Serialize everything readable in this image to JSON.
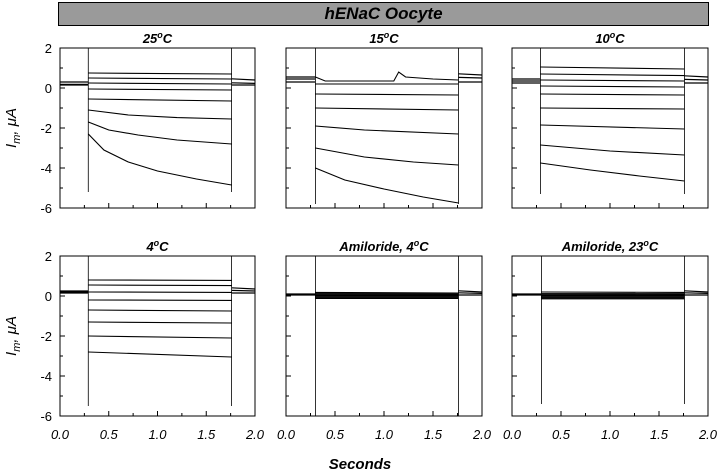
{
  "banner_title": "hENaC Oocyte",
  "xlabel": "Seconds",
  "ylabel_main": "I",
  "ylabel_sub": "m",
  "ylabel_rest": ", μA",
  "chart_data": [
    {
      "type": "line",
      "title_main": "25",
      "title_sup": "o",
      "title_rest": "C",
      "xlim": [
        0,
        2
      ],
      "ylim": [
        -6,
        2
      ],
      "xticks": [
        "0.0",
        "0.5",
        "1.0",
        "1.5",
        "2.0"
      ],
      "yticks": [
        "2",
        "0",
        "-2",
        "-4",
        "-6"
      ],
      "pulse": [
        0.29,
        1.76
      ],
      "transient_low": -5.2,
      "baseline": [
        0.15,
        0.18,
        0.3
      ],
      "series": [
        {
          "values": [
            [
              0.29,
              0.75
            ],
            [
              1.76,
              0.7
            ]
          ]
        },
        {
          "values": [
            [
              0.29,
              0.5
            ],
            [
              1.76,
              0.45
            ]
          ]
        },
        {
          "values": [
            [
              0.29,
              0.25
            ],
            [
              1.76,
              0.2
            ]
          ]
        },
        {
          "values": [
            [
              0.29,
              -0.05
            ],
            [
              1.76,
              -0.1
            ]
          ]
        },
        {
          "values": [
            [
              0.29,
              -0.55
            ],
            [
              1.76,
              -0.65
            ]
          ]
        },
        {
          "values": [
            [
              0.29,
              -1.1
            ],
            [
              0.7,
              -1.35
            ],
            [
              1.2,
              -1.48
            ],
            [
              1.76,
              -1.55
            ]
          ]
        },
        {
          "values": [
            [
              0.29,
              -1.7
            ],
            [
              0.5,
              -2.1
            ],
            [
              0.8,
              -2.35
            ],
            [
              1.2,
              -2.6
            ],
            [
              1.76,
              -2.8
            ]
          ]
        },
        {
          "values": [
            [
              0.29,
              -2.3
            ],
            [
              0.45,
              -3.1
            ],
            [
              0.7,
              -3.7
            ],
            [
              1.0,
              -4.15
            ],
            [
              1.4,
              -4.55
            ],
            [
              1.76,
              -4.85
            ]
          ]
        }
      ]
    },
    {
      "type": "line",
      "title_main": "15",
      "title_sup": "o",
      "title_rest": "C",
      "xlim": [
        0,
        2
      ],
      "ylim": [
        -6,
        2
      ],
      "xticks": [
        "0.0",
        "0.5",
        "1.0",
        "1.5",
        "2.0"
      ],
      "yticks": [],
      "pulse": [
        0.3,
        1.76
      ],
      "transient_low": -5.8,
      "baseline": [
        0.3,
        0.45,
        0.55
      ],
      "series": [
        {
          "values": [
            [
              0.3,
              0.55
            ],
            [
              0.4,
              0.35
            ],
            [
              0.6,
              0.35
            ],
            [
              1.1,
              0.35
            ],
            [
              1.15,
              0.8
            ],
            [
              1.22,
              0.55
            ],
            [
              1.5,
              0.45
            ],
            [
              1.76,
              0.4
            ]
          ]
        },
        {
          "values": [
            [
              0.3,
              0.2
            ],
            [
              1.76,
              0.2
            ]
          ]
        },
        {
          "values": [
            [
              0.3,
              -0.3
            ],
            [
              1.76,
              -0.35
            ]
          ]
        },
        {
          "values": [
            [
              0.3,
              -1.0
            ],
            [
              1.76,
              -1.1
            ]
          ]
        },
        {
          "values": [
            [
              0.3,
              -1.9
            ],
            [
              0.8,
              -2.1
            ],
            [
              1.76,
              -2.3
            ]
          ]
        },
        {
          "values": [
            [
              0.3,
              -3.0
            ],
            [
              0.8,
              -3.45
            ],
            [
              1.3,
              -3.7
            ],
            [
              1.76,
              -3.85
            ]
          ]
        },
        {
          "values": [
            [
              0.3,
              -4.0
            ],
            [
              0.6,
              -4.6
            ],
            [
              1.0,
              -5.05
            ],
            [
              1.4,
              -5.45
            ],
            [
              1.76,
              -5.75
            ]
          ]
        }
      ]
    },
    {
      "type": "line",
      "title_main": "10",
      "title_sup": "o",
      "title_rest": "C",
      "xlim": [
        0,
        2
      ],
      "ylim": [
        -6,
        2
      ],
      "xticks": [
        "0.0",
        "0.5",
        "1.0",
        "1.5",
        "2.0"
      ],
      "yticks": [],
      "pulse": [
        0.29,
        1.76
      ],
      "transient_low": -5.3,
      "baseline": [
        0.25,
        0.35,
        0.45
      ],
      "series": [
        {
          "values": [
            [
              0.29,
              1.05
            ],
            [
              1.76,
              0.95
            ]
          ]
        },
        {
          "values": [
            [
              0.29,
              0.7
            ],
            [
              1.76,
              0.62
            ]
          ]
        },
        {
          "values": [
            [
              0.29,
              0.4
            ],
            [
              1.76,
              0.35
            ]
          ]
        },
        {
          "values": [
            [
              0.29,
              0.1
            ],
            [
              1.76,
              0.05
            ]
          ]
        },
        {
          "values": [
            [
              0.29,
              -0.3
            ],
            [
              1.76,
              -0.35
            ]
          ]
        },
        {
          "values": [
            [
              0.29,
              -1.0
            ],
            [
              1.76,
              -1.05
            ]
          ]
        },
        {
          "values": [
            [
              0.29,
              -1.85
            ],
            [
              1.76,
              -2.05
            ]
          ]
        },
        {
          "values": [
            [
              0.29,
              -2.85
            ],
            [
              1.0,
              -3.15
            ],
            [
              1.76,
              -3.35
            ]
          ]
        },
        {
          "values": [
            [
              0.29,
              -3.75
            ],
            [
              0.8,
              -4.1
            ],
            [
              1.3,
              -4.4
            ],
            [
              1.76,
              -4.65
            ]
          ]
        }
      ]
    },
    {
      "type": "line",
      "title_main": "4",
      "title_sup": "o",
      "title_rest": "C",
      "xlim": [
        0,
        2
      ],
      "ylim": [
        -6,
        2
      ],
      "xticks": [
        "0.0",
        "0.5",
        "1.0",
        "1.5",
        "2.0"
      ],
      "yticks": [
        "2",
        "0",
        "-2",
        "-4",
        "-6"
      ],
      "pulse": [
        0.29,
        1.76
      ],
      "transient_low": -5.5,
      "baseline": [
        0.15,
        0.2,
        0.25
      ],
      "series": [
        {
          "values": [
            [
              0.29,
              0.8
            ],
            [
              1.76,
              0.78
            ]
          ]
        },
        {
          "values": [
            [
              0.29,
              0.55
            ],
            [
              1.76,
              0.52
            ]
          ]
        },
        {
          "values": [
            [
              0.29,
              0.2
            ],
            [
              1.76,
              0.18
            ]
          ]
        },
        {
          "values": [
            [
              0.29,
              -0.2
            ],
            [
              1.76,
              -0.22
            ]
          ]
        },
        {
          "values": [
            [
              0.29,
              -0.7
            ],
            [
              1.76,
              -0.75
            ]
          ]
        },
        {
          "values": [
            [
              0.29,
              -1.3
            ],
            [
              1.76,
              -1.35
            ]
          ]
        },
        {
          "values": [
            [
              0.29,
              -2.0
            ],
            [
              1.76,
              -2.1
            ]
          ]
        },
        {
          "values": [
            [
              0.29,
              -2.8
            ],
            [
              1.76,
              -3.05
            ]
          ]
        }
      ]
    },
    {
      "type": "line",
      "title_main": "Amiloride, 4",
      "title_sup": "o",
      "title_rest": "C",
      "xlim": [
        0,
        2
      ],
      "ylim": [
        -6,
        2
      ],
      "xticks": [
        "0.0",
        "0.5",
        "1.0",
        "1.5",
        "2.0"
      ],
      "yticks": [],
      "pulse": [
        0.3,
        1.76
      ],
      "transient_low": -6.0,
      "baseline": [
        0.05,
        0.08,
        0.1
      ],
      "series": [
        {
          "values": [
            [
              0.3,
              0.18
            ],
            [
              1.76,
              0.15
            ]
          ]
        },
        {
          "values": [
            [
              0.3,
              0.1
            ],
            [
              1.76,
              0.08
            ]
          ]
        },
        {
          "values": [
            [
              0.3,
              0.03
            ],
            [
              1.76,
              0.02
            ]
          ]
        },
        {
          "values": [
            [
              0.3,
              -0.05
            ],
            [
              1.76,
              -0.05
            ]
          ]
        },
        {
          "values": [
            [
              0.3,
              -0.12
            ],
            [
              1.76,
              -0.12
            ]
          ]
        }
      ]
    },
    {
      "type": "line",
      "title_main": "Amiloride, 23",
      "title_sup": "o",
      "title_rest": "C",
      "xlim": [
        0,
        2
      ],
      "ylim": [
        -6,
        2
      ],
      "xticks": [
        "0.0",
        "0.5",
        "1.0",
        "1.5",
        "2.0"
      ],
      "yticks": [],
      "pulse": [
        0.3,
        1.76
      ],
      "transient_low": -5.4,
      "baseline": [
        0.05,
        0.08,
        0.1
      ],
      "series": [
        {
          "values": [
            [
              0.3,
              0.2
            ],
            [
              1.76,
              0.18
            ]
          ]
        },
        {
          "values": [
            [
              0.3,
              0.1
            ],
            [
              1.76,
              0.08
            ]
          ]
        },
        {
          "values": [
            [
              0.3,
              0.02
            ],
            [
              1.76,
              0.02
            ]
          ]
        },
        {
          "values": [
            [
              0.3,
              -0.06
            ],
            [
              1.76,
              -0.06
            ]
          ]
        },
        {
          "values": [
            [
              0.3,
              -0.14
            ],
            [
              1.76,
              -0.14
            ]
          ]
        }
      ]
    }
  ]
}
